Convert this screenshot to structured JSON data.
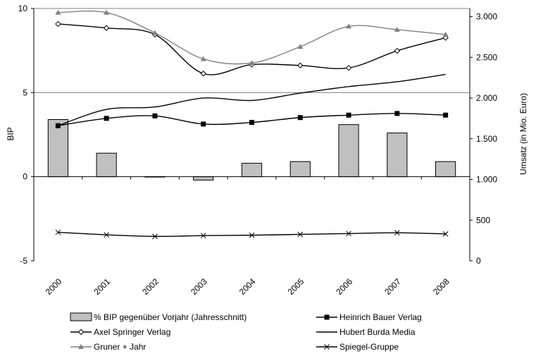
{
  "chart_data": {
    "type": "bar+line",
    "categories": [
      "2000",
      "2001",
      "2002",
      "2003",
      "2004",
      "2005",
      "2006",
      "2007",
      "2008"
    ],
    "left_axis": {
      "label": "BIP",
      "min": -5,
      "max": 10,
      "ticks": [
        -5,
        0,
        5,
        10
      ]
    },
    "right_axis": {
      "label": "Umsatz (in Mio. Euro)",
      "min": 0,
      "max": 3100,
      "ticks": [
        0,
        500,
        1000,
        1500,
        2000,
        2500,
        3000
      ],
      "tick_labels": [
        "0",
        "500",
        "1.000",
        "1.500",
        "2.000",
        "2.500",
        "3.000"
      ]
    },
    "bars": {
      "name": "% BIP gegenüber Vorjahr (Jahresschnitt)",
      "axis": "left",
      "values": [
        3.4,
        1.4,
        0.0,
        -0.2,
        0.8,
        0.9,
        3.1,
        2.6,
        0.9
      ]
    },
    "series": [
      {
        "name": "Heinrich Bauer Verlag",
        "axis": "right",
        "marker": "square",
        "color": "#000000",
        "values": [
          1660,
          1750,
          1780,
          1680,
          1700,
          1760,
          1790,
          1810,
          1790
        ]
      },
      {
        "name": "Axel Springer Verlag",
        "axis": "right",
        "marker": "diamond-open",
        "color": "#000000",
        "values": [
          2910,
          2860,
          2780,
          2300,
          2410,
          2400,
          2370,
          2580,
          2740
        ]
      },
      {
        "name": "Hubert Burda Media",
        "axis": "right",
        "marker": "none",
        "color": "#000000",
        "values": [
          1660,
          1860,
          1890,
          2000,
          1970,
          2060,
          2140,
          2200,
          2290
        ]
      },
      {
        "name": "Gruner + Jahr",
        "axis": "right",
        "marker": "triangle",
        "color": "#808080",
        "values": [
          3050,
          3050,
          2800,
          2480,
          2430,
          2630,
          2880,
          2840,
          2780
        ]
      },
      {
        "name": "Spiegel-Gruppe",
        "axis": "right",
        "marker": "x",
        "color": "#000000",
        "values": [
          350,
          320,
          300,
          310,
          315,
          325,
          335,
          345,
          330
        ]
      }
    ],
    "gridlines": {
      "left_axis_values": [
        5,
        10
      ]
    },
    "legend": {
      "position": "bottom"
    }
  }
}
